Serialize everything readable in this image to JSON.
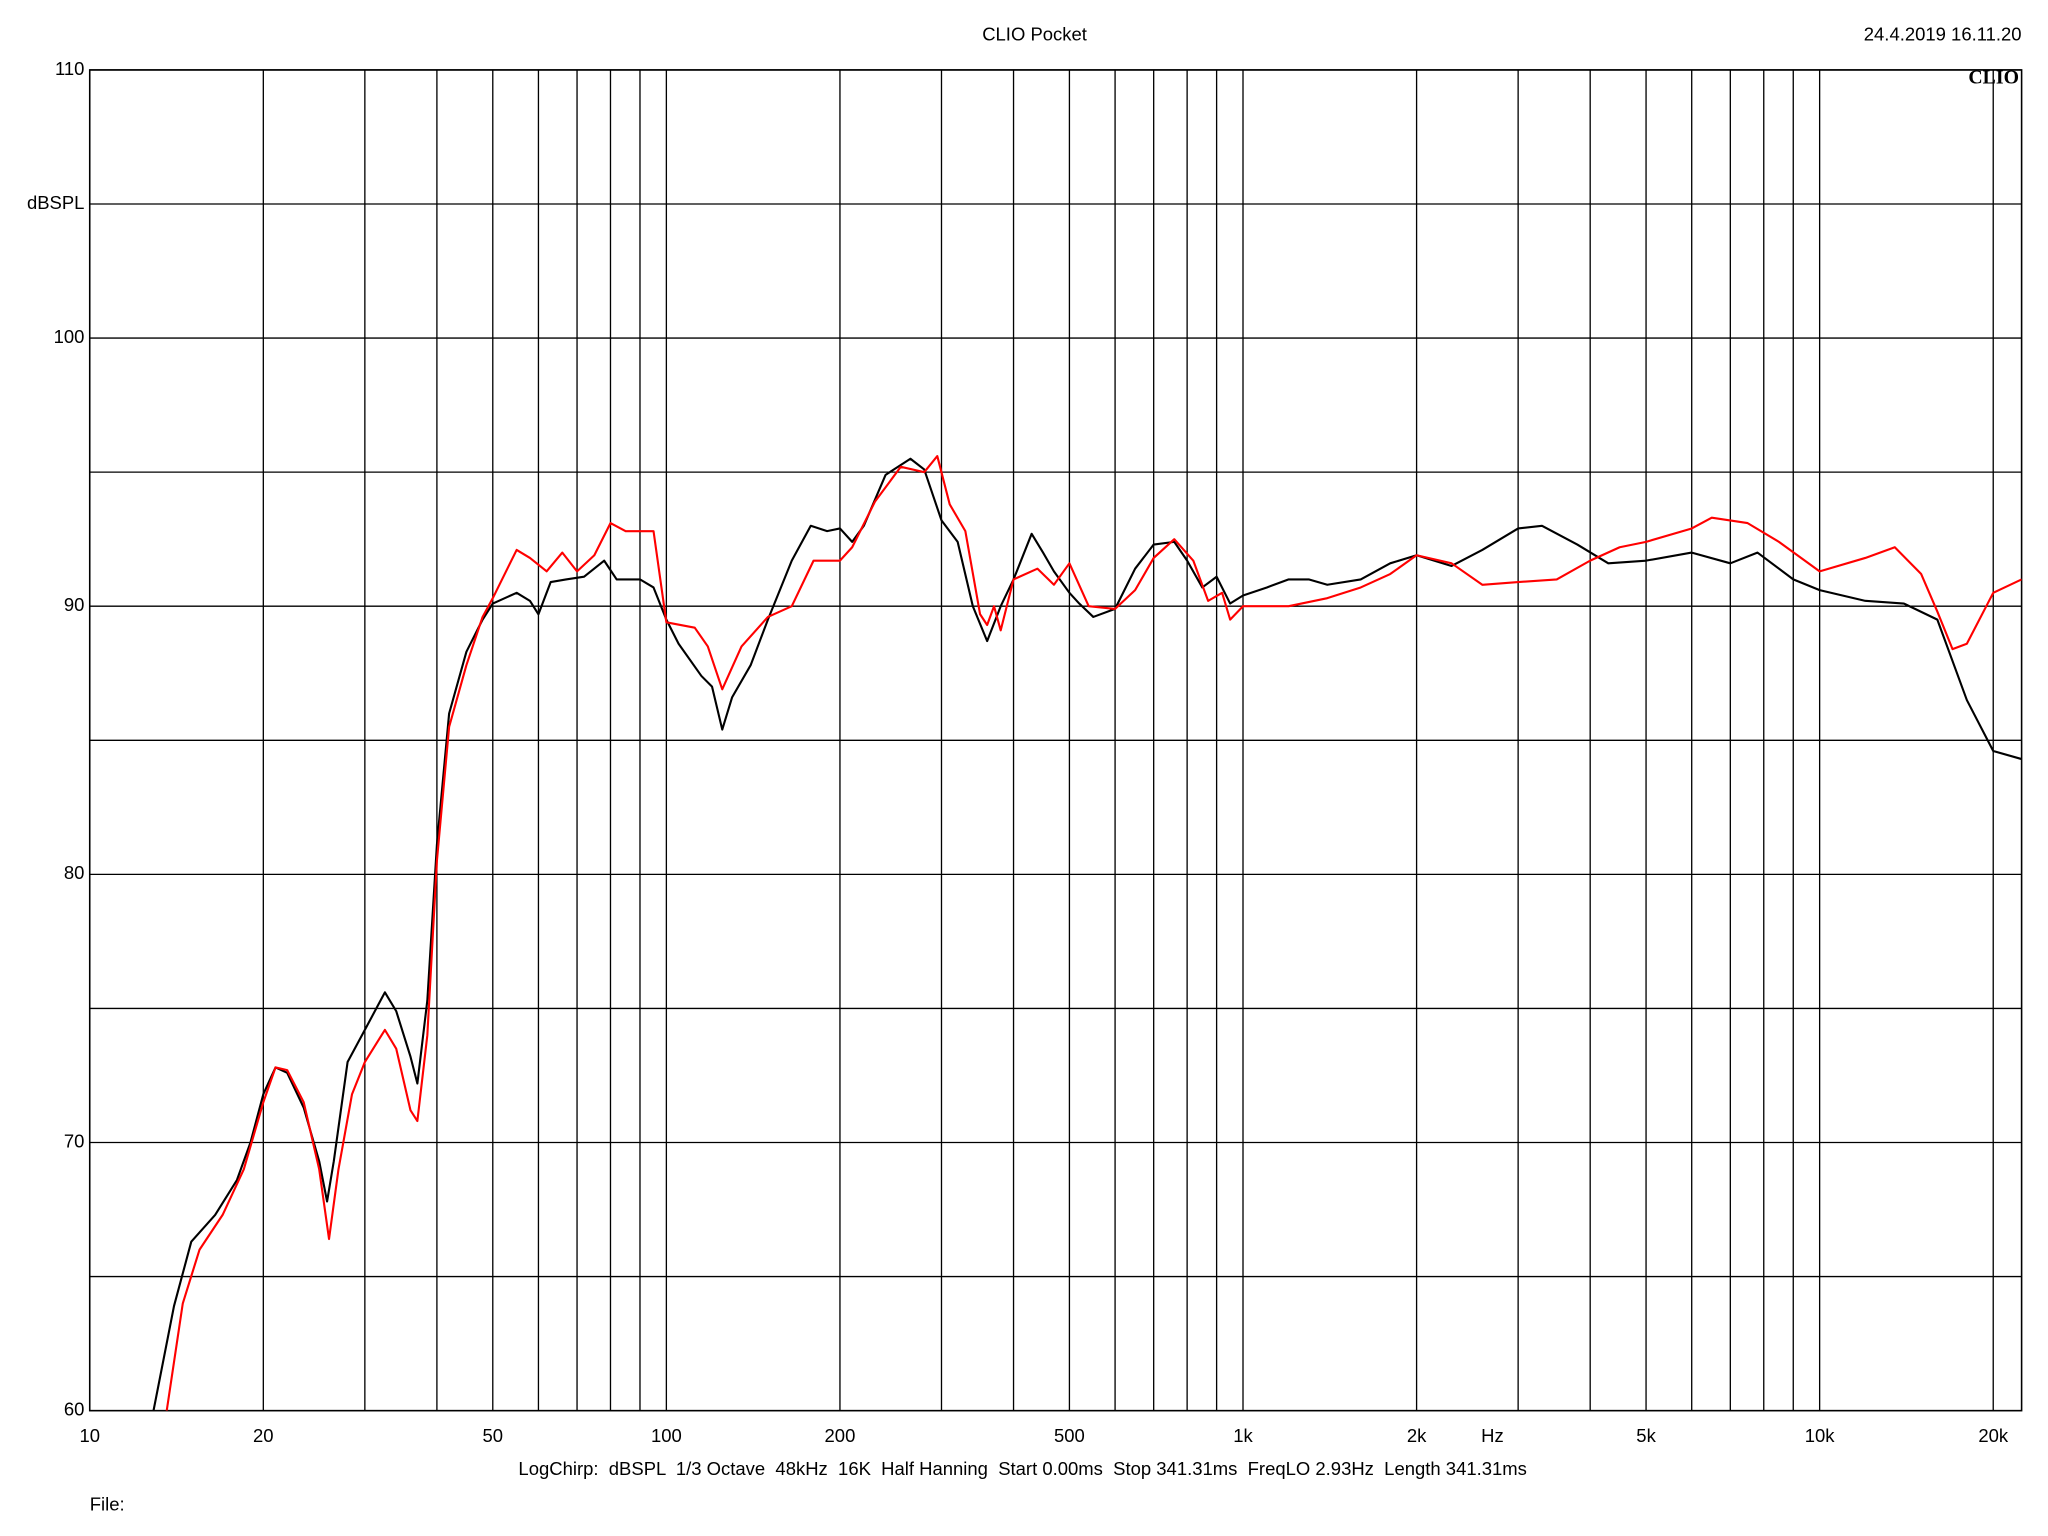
{
  "chart_data": {
    "type": "line",
    "title": "CLIO Pocket",
    "timestamp": "24.4.2019 16.11.20",
    "logo": "CLIO",
    "y_label": "dBSPL",
    "x_label": "Hz",
    "footer": "LogChirp:  dBSPL  1/3 Octave  48kHz  16K  Half Hanning  Start 0.00ms  Stop 341.31ms  FreqLO 2.93Hz  Length 341.31ms",
    "file_label": "File:",
    "log_x": true,
    "grid": true,
    "xlim": [
      10,
      22400
    ],
    "ylim": [
      60,
      110
    ],
    "yticks": [
      60,
      70,
      80,
      90,
      100,
      110
    ],
    "y_minor_grid": [
      65,
      75,
      85,
      95,
      105
    ],
    "xticks": [
      10,
      20,
      50,
      100,
      200,
      500,
      {
        "value": 1000,
        "label": "1k"
      },
      {
        "value": 2000,
        "label": "2k"
      },
      {
        "value": 5000,
        "label": "5k"
      },
      {
        "value": 10000,
        "label": "10k"
      },
      {
        "value": 20000,
        "label": "20k"
      }
    ],
    "x_minor_grid": [
      30,
      40,
      60,
      70,
      80,
      90,
      300,
      400,
      600,
      700,
      800,
      900,
      3000,
      4000,
      6000,
      7000,
      8000,
      9000
    ],
    "series": [
      {
        "color": "#000000",
        "x": [
          12.9,
          14,
          15,
          16.5,
          18,
          19,
          20,
          21,
          22,
          23.5,
          25,
          25.8,
          26.5,
          28,
          30,
          32.5,
          34,
          36,
          37,
          38.5,
          40,
          42,
          45,
          48,
          50,
          55,
          58,
          60,
          63,
          67,
          72,
          78,
          82,
          90,
          95,
          100,
          105,
          115,
          120,
          125,
          130,
          140,
          150,
          165,
          178,
          190,
          200,
          210,
          220,
          240,
          265,
          280,
          300,
          320,
          340,
          360,
          380,
          400,
          430,
          450,
          470,
          500,
          520,
          550,
          600,
          650,
          700,
          760,
          800,
          850,
          900,
          950,
          1000,
          1100,
          1200,
          1300,
          1400,
          1600,
          1800,
          2000,
          2300,
          2600,
          3000,
          3300,
          3800,
          4300,
          5000,
          6000,
          7000,
          7800,
          9000,
          10000,
          12000,
          14000,
          16000,
          18000,
          20000,
          22400
        ],
        "values": [
          60,
          63.9,
          66.3,
          67.3,
          68.6,
          70.0,
          71.8,
          72.8,
          72.6,
          71.3,
          69.3,
          67.8,
          69.3,
          73.0,
          74.2,
          75.6,
          74.9,
          73.2,
          72.2,
          75.3,
          81.1,
          86.0,
          88.3,
          89.5,
          90.1,
          90.5,
          90.2,
          89.7,
          90.9,
          91.0,
          91.1,
          91.7,
          91.0,
          91.0,
          90.7,
          89.5,
          88.6,
          87.4,
          87.0,
          85.4,
          86.6,
          87.8,
          89.5,
          91.7,
          93.0,
          92.8,
          92.9,
          92.4,
          93.0,
          94.9,
          95.5,
          95.1,
          93.2,
          92.4,
          90.0,
          88.7,
          90.0,
          91.0,
          92.7,
          92.0,
          91.3,
          90.5,
          90.1,
          89.6,
          89.9,
          91.4,
          92.3,
          92.4,
          91.7,
          90.7,
          91.1,
          90.1,
          90.4,
          90.7,
          91.0,
          91.0,
          90.8,
          91.0,
          91.6,
          91.9,
          91.5,
          92.1,
          92.9,
          93.0,
          92.3,
          91.6,
          91.7,
          92.0,
          91.6,
          92.0,
          91.0,
          90.6,
          90.2,
          90.1,
          89.5,
          86.5,
          84.6,
          84.3
        ]
      },
      {
        "color": "#ff0000",
        "x": [
          13.6,
          14.5,
          15.5,
          17,
          18.5,
          20,
          21,
          22,
          23.5,
          25,
          26,
          27,
          28.5,
          30,
          32.5,
          34,
          36,
          37,
          38.5,
          40,
          42,
          45,
          48,
          50,
          55,
          58,
          62,
          66,
          70,
          75,
          80,
          85,
          95,
          100,
          112,
          118,
          125,
          135,
          150,
          165,
          180,
          200,
          210,
          230,
          255,
          280,
          295,
          310,
          330,
          350,
          360,
          370,
          380,
          400,
          440,
          470,
          500,
          540,
          600,
          650,
          700,
          760,
          820,
          870,
          920,
          950,
          1000,
          1200,
          1400,
          1600,
          1800,
          2000,
          2300,
          2600,
          3000,
          3500,
          4000,
          4500,
          5000,
          6000,
          6500,
          7500,
          8500,
          10000,
          12000,
          13500,
          15000,
          16000,
          17000,
          18000,
          20000,
          22400
        ],
        "values": [
          60,
          64.0,
          66.0,
          67.3,
          69.0,
          71.5,
          72.8,
          72.7,
          71.5,
          69.0,
          66.4,
          69.0,
          71.8,
          73.0,
          74.2,
          73.5,
          71.2,
          70.8,
          74.0,
          80.5,
          85.5,
          87.8,
          89.6,
          90.3,
          92.1,
          91.8,
          91.3,
          92.0,
          91.3,
          91.9,
          93.1,
          92.8,
          92.8,
          89.4,
          89.2,
          88.5,
          86.9,
          88.5,
          89.6,
          90.0,
          91.7,
          91.7,
          92.2,
          93.9,
          95.2,
          95.0,
          95.6,
          93.8,
          92.8,
          89.7,
          89.3,
          90.0,
          89.1,
          91.0,
          91.4,
          90.8,
          91.6,
          90.0,
          89.9,
          90.6,
          91.8,
          92.5,
          91.7,
          90.2,
          90.5,
          89.5,
          90.0,
          90.0,
          90.3,
          90.7,
          91.2,
          91.9,
          91.6,
          90.8,
          90.9,
          91.0,
          91.7,
          92.2,
          92.4,
          92.9,
          93.3,
          93.1,
          92.4,
          91.3,
          91.8,
          92.2,
          91.2,
          89.8,
          88.4,
          88.6,
          90.5,
          91.0
        ]
      }
    ]
  }
}
